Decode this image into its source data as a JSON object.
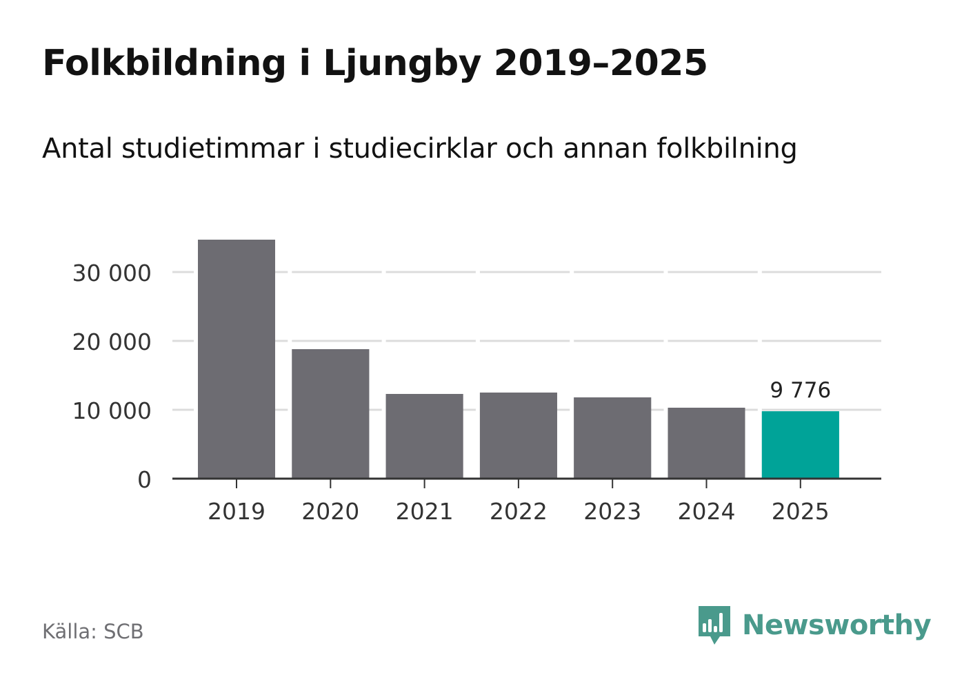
{
  "chart_data": {
    "type": "bar",
    "title": "Folkbildning i Ljungby 2019–2025",
    "subtitle": "Antal studietimmar i studiecirklar och annan folkbilning",
    "categories": [
      "2019",
      "2020",
      "2021",
      "2022",
      "2023",
      "2024",
      "2025"
    ],
    "values": [
      34700,
      18800,
      12300,
      12500,
      11800,
      10300,
      9776
    ],
    "highlight_index": 6,
    "highlight_label": "9 776",
    "ylim": [
      0,
      36000
    ],
    "y_ticks": [
      0,
      10000,
      20000,
      30000
    ],
    "y_tick_labels": [
      "0",
      "10 000",
      "20 000",
      "30 000"
    ],
    "xlabel": "",
    "ylabel": "",
    "grid": true,
    "colors": {
      "bar": "#6d6c72",
      "highlight": "#00a398",
      "grid": "#dcdcdc",
      "axis": "#333333",
      "tick_text": "#333333"
    }
  },
  "footer": {
    "source": "Källa: SCB",
    "brand": "Newsworthy"
  }
}
